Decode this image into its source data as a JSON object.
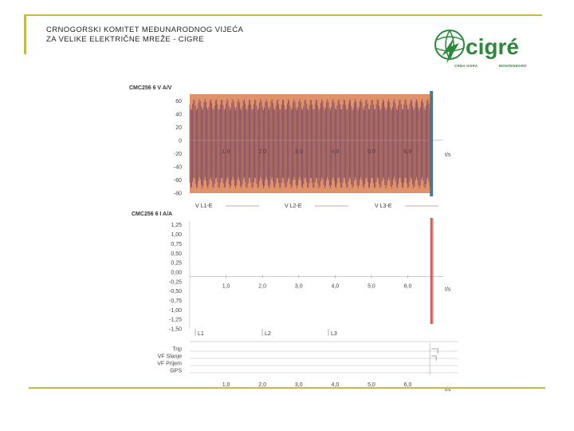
{
  "header": {
    "line1": "CRNOGORSKI KOMITET MEĐUNARODNOG VIJEĆA",
    "line2": "ZA VELIKE ELEKTRIČNE MREŽE - CIGRE"
  },
  "logo": {
    "text": "cigré",
    "sub_left": "CRNA GORA",
    "sub_right": "MONTENEGRO",
    "color": "#2a8a3a"
  },
  "colors": {
    "accent_line": "#c8b84a",
    "voltage_fill_1": "#5a2f5e",
    "voltage_fill_2": "#e0936a",
    "current_trace": "#d04040"
  },
  "chart_data": [
    {
      "type": "line",
      "title": "CMC256 6 V A/V",
      "xlabel": "t/s",
      "x_ticks": [
        "1,0",
        "2,0",
        "3,0",
        "4,0",
        "5,0",
        "6,0"
      ],
      "y_ticks": [
        "60",
        "40",
        "20",
        "0",
        "-20",
        "-40",
        "-60",
        "-80"
      ],
      "ylim": [
        -80,
        70
      ],
      "xlim": [
        0,
        6.8
      ],
      "legend": [
        "V L1-E",
        "V L2-E",
        "V L3-E"
      ],
      "series": [
        {
          "name": "V L1-E",
          "amplitude": 70
        },
        {
          "name": "V L2-E",
          "amplitude": 70
        },
        {
          "name": "V L3-E",
          "amplitude": 70
        }
      ],
      "signal_end_t": 6.65
    },
    {
      "type": "line",
      "title": "CMC256 6 I A/A",
      "xlabel": "t/s",
      "x_ticks": [
        "1,0",
        "2,0",
        "3,0",
        "4,0",
        "5,0",
        "6,0"
      ],
      "y_ticks": [
        "1,25",
        "1,00",
        "0,75",
        "0,50",
        "0,25",
        "0,00",
        "-0,25",
        "-0,50",
        "-0,75",
        "-1,00",
        "-1,25",
        "-1,50"
      ],
      "ylim": [
        -1.5,
        1.35
      ],
      "xlim": [
        0,
        6.8
      ],
      "legend": [
        "L1",
        "L2",
        "L3"
      ],
      "spike_t": 6.65
    },
    {
      "type": "line",
      "title": "",
      "xlabel": "t/s",
      "x_ticks": [
        "1,0",
        "2,0",
        "3,0",
        "4,0",
        "5,0",
        "6,0"
      ],
      "channels": [
        "Trip",
        "VF Slanje",
        "VF Prijem",
        "GPS"
      ],
      "step_t": 6.65
    }
  ]
}
